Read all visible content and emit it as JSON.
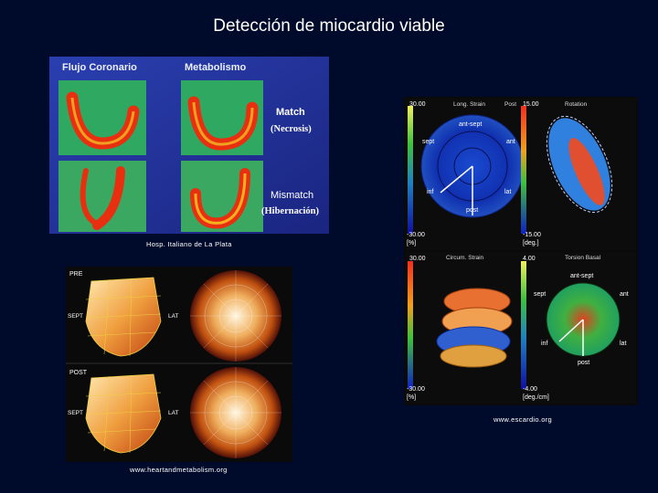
{
  "slide": {
    "title": "Detección de miocardio viable"
  },
  "panel_perfusion": {
    "header_left": "Flujo Coronario",
    "header_right": "Metabolismo",
    "match_label": "Match",
    "match_sub": "(Necrosis)",
    "mismatch_label": "Mismatch",
    "mismatch_sub": "(Hibernación)",
    "caption": "Hosp. Italiano de La Plata"
  },
  "panel_strain": {
    "q1_max": "30.00",
    "q1_title": "Long. Strain",
    "q1_post_tag": "Post",
    "q1_seg_antsept": "ant-sept",
    "q1_seg_sept": "sept",
    "q1_seg_ant": "ant",
    "q1_seg_inf": "inf",
    "q1_seg_lat": "lat",
    "q1_seg_post": "post",
    "q1_min": "-30.00",
    "q1_unit": "[%]",
    "q2_max": "15.00",
    "q2_title": "Rotation",
    "q2_min": "-15.00",
    "q2_unit": "[deg.]",
    "q3_max": "30.00",
    "q3_title": "Circum. Strain",
    "q3_min": "-30.00",
    "q3_unit": "[%]",
    "q4_max": "4.00",
    "q4_title": "Torsion Basal",
    "q4_seg_antsept": "ant-sept",
    "q4_seg_sept": "sept",
    "q4_seg_ant": "ant",
    "q4_seg_inf": "inf",
    "q4_seg_lat": "lat",
    "q4_seg_post": "post",
    "q4_min": "-4.00",
    "q4_unit": "[deg./cm]",
    "caption": "www.escardio.org"
  },
  "panel_polar": {
    "pre_label": "PRE",
    "post_label": "POST",
    "sept_label": "SEPT",
    "lat_label": "LAT",
    "caption": "www.heartandmetabolism.org"
  },
  "colors": {
    "background": "#000a2a",
    "title_text": "#ffffff",
    "perfusion_bg": "#1a2a9a",
    "strain_bg": "#0a0a0a",
    "polar_bg": "#0a0a0a"
  }
}
